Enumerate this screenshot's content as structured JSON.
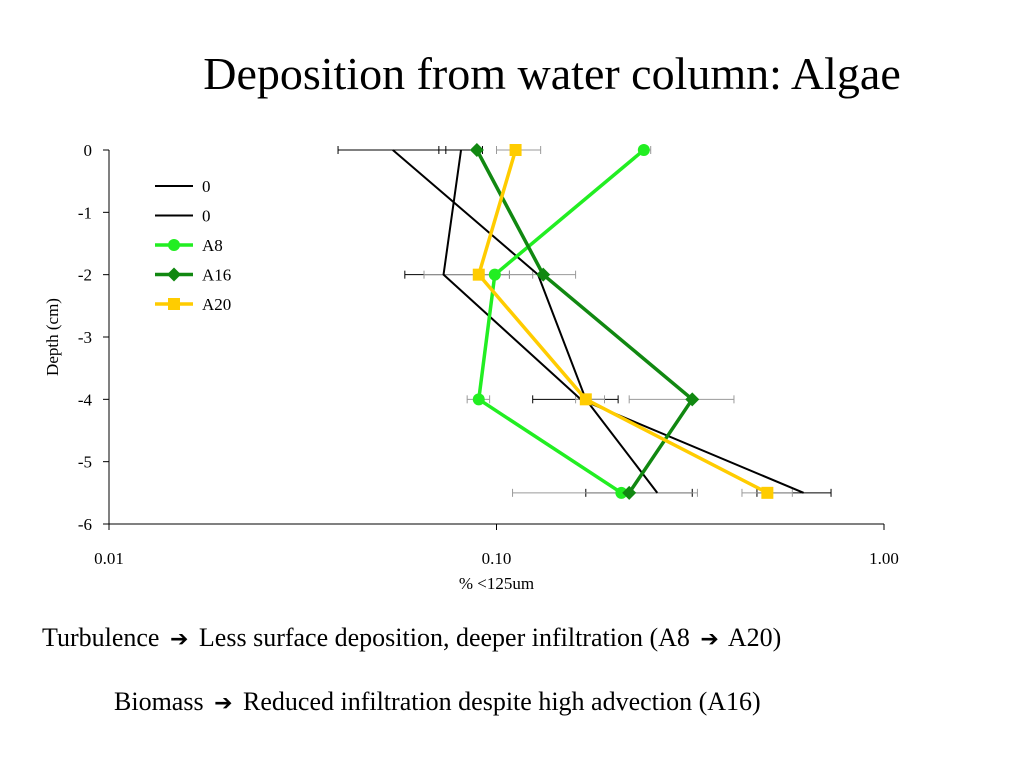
{
  "slide": {
    "title": "Deposition from water column: Algae",
    "captions": [
      {
        "left": "Turbulence",
        "arrow1": "➔",
        "middle": "Less surface deposition, deeper infiltration (A8",
        "arrow2": "➔",
        "right": "A20)"
      },
      {
        "left": "Biomass",
        "arrow1": "➔",
        "middle": "Reduced infiltration despite high advection (A16)",
        "arrow2": "",
        "right": ""
      }
    ]
  },
  "chart_data": {
    "type": "line",
    "title": "",
    "xlabel": "% <125um",
    "ylabel": "Depth (cm)",
    "x_scale": "log",
    "xlim": [
      0.01,
      1.0
    ],
    "ylim": [
      -6,
      0
    ],
    "x_ticks": [
      0.01,
      0.1,
      1.0
    ],
    "x_tick_labels": [
      "0.01",
      "0.10",
      "1.00"
    ],
    "y_ticks": [
      0,
      -1,
      -2,
      -3,
      -4,
      -5,
      -6
    ],
    "y_tick_labels": [
      "0",
      "-1",
      "-2",
      "-3",
      "-4",
      "-5",
      "-6"
    ],
    "grid": false,
    "legend_position": "top-left",
    "series": [
      {
        "name": "0",
        "color": "#000000",
        "marker": "none",
        "points": [
          {
            "x": 0.054,
            "y": 0,
            "err": [
              0.039,
              0.074
            ]
          },
          {
            "x": 0.128,
            "y": -2
          },
          {
            "x": 0.17,
            "y": -4
          },
          {
            "x": 0.26,
            "y": -5.5,
            "err": [
              0.17,
              0.32
            ]
          }
        ]
      },
      {
        "name": "0",
        "color": "#000000",
        "marker": "none",
        "points": [
          {
            "x": 0.081,
            "y": 0,
            "err": [
              0.071,
              0.092
            ]
          },
          {
            "x": 0.073,
            "y": -2,
            "err": [
              0.058,
              0.108
            ]
          },
          {
            "x": 0.165,
            "y": -4,
            "err": [
              0.124,
              0.206
            ]
          },
          {
            "x": 0.62,
            "y": -5.5,
            "err": [
              0.47,
              0.73
            ]
          }
        ]
      },
      {
        "name": "A8",
        "color": "#22ee22",
        "marker": "circle",
        "points": [
          {
            "x": 0.24,
            "y": 0,
            "err": [
              0.24,
              0.25
            ]
          },
          {
            "x": 0.099,
            "y": -2
          },
          {
            "x": 0.09,
            "y": -4,
            "err": [
              0.084,
              0.096
            ]
          },
          {
            "x": 0.21,
            "y": -5.5
          }
        ]
      },
      {
        "name": "A16",
        "color": "#118811",
        "marker": "diamond",
        "points": [
          {
            "x": 0.089,
            "y": 0
          },
          {
            "x": 0.132,
            "y": -2,
            "err": [
              0.108,
              0.16
            ]
          },
          {
            "x": 0.32,
            "y": -4,
            "err": [
              0.22,
              0.41
            ]
          },
          {
            "x": 0.22,
            "y": -5.5,
            "err": [
              0.11,
              0.33
            ]
          }
        ]
      },
      {
        "name": "A20",
        "color": "#ffcc00",
        "marker": "square",
        "points": [
          {
            "x": 0.112,
            "y": 0,
            "err": [
              0.1,
              0.13
            ]
          },
          {
            "x": 0.09,
            "y": -2,
            "err": [
              0.065,
              0.124
            ]
          },
          {
            "x": 0.17,
            "y": -4,
            "err": [
              0.16,
              0.19
            ]
          },
          {
            "x": 0.5,
            "y": -5.5,
            "err": [
              0.43,
              0.58
            ]
          }
        ]
      }
    ]
  }
}
